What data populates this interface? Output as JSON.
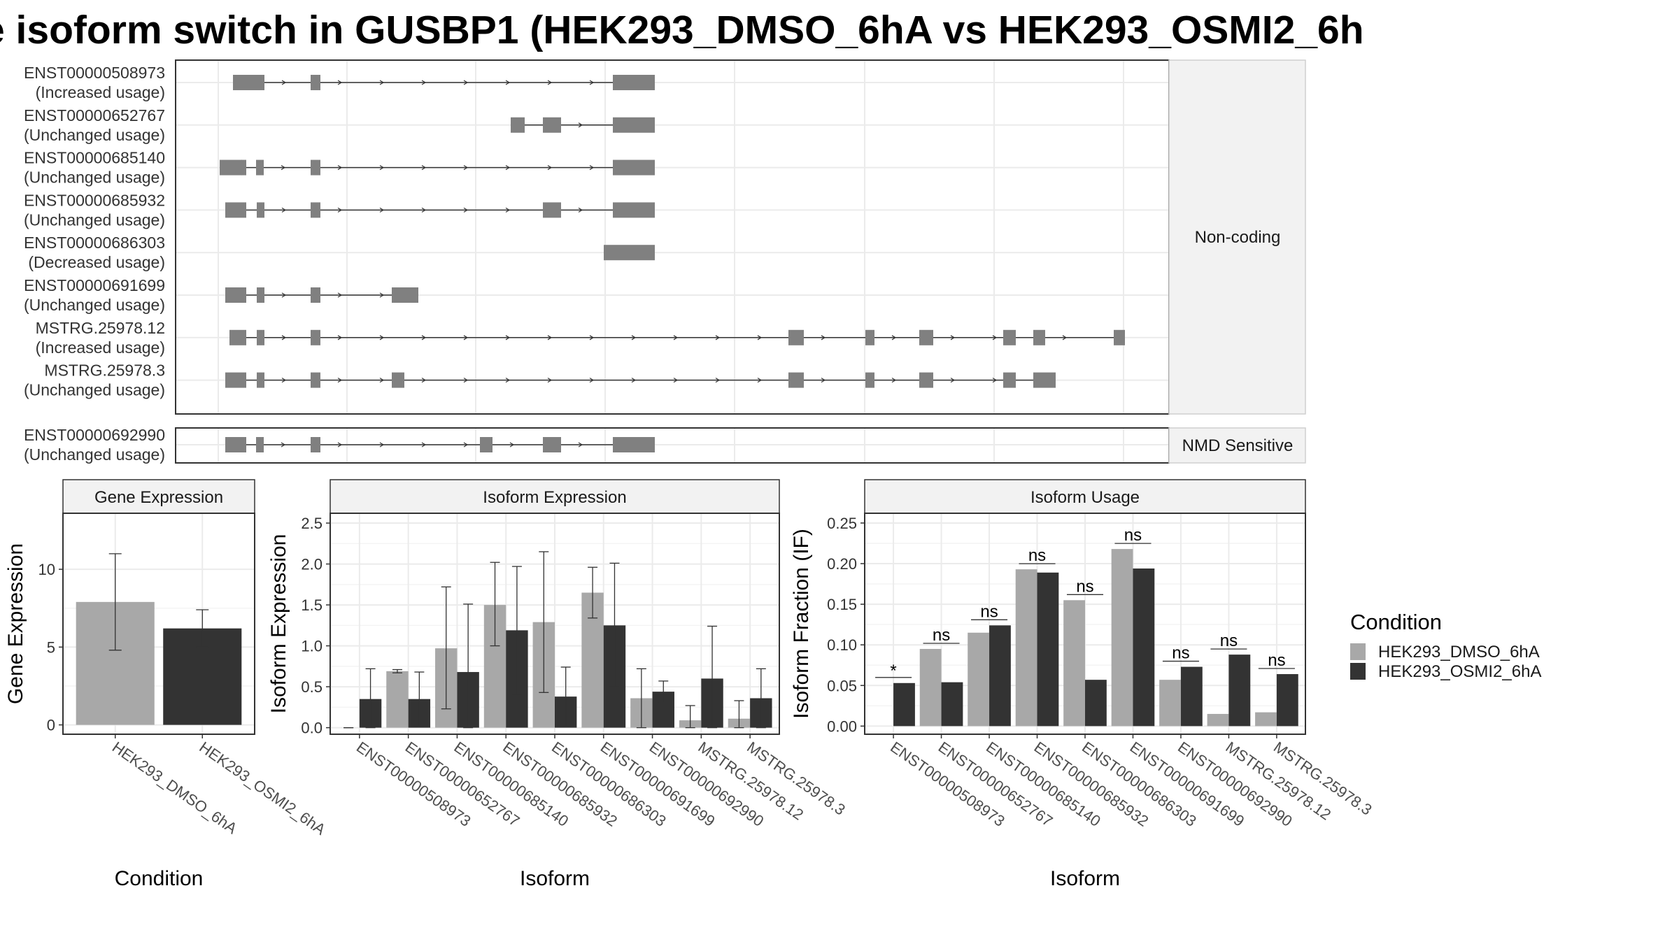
{
  "title": "e isoform switch in GUSBP1 (HEK293_DMSO_6hA vs HEK293_OSMI2_6h",
  "colors": {
    "dmso": "#a8a8a8",
    "osmi2": "#333333",
    "exon": "#808080",
    "grid": "#ebebeb",
    "strip": "#f2f2f2",
    "border": "#333333"
  },
  "chart_data": [
    {
      "type": "gene-structure",
      "panel": "Non-coding",
      "label": "Non-coding",
      "transcripts": [
        {
          "id": "ENST00000508973",
          "usage": "(Increased usage)"
        },
        {
          "id": "ENST00000652767",
          "usage": "(Unchanged usage)"
        },
        {
          "id": "ENST00000685140",
          "usage": "(Unchanged usage)"
        },
        {
          "id": "ENST00000685932",
          "usage": "(Unchanged usage)"
        },
        {
          "id": "ENST00000686303",
          "usage": "(Decreased usage)"
        },
        {
          "id": "ENST00000691699",
          "usage": "(Unchanged usage)"
        },
        {
          "id": "MSTRG.25978.12",
          "usage": "(Increased usage)"
        },
        {
          "id": "MSTRG.25978.3",
          "usage": "(Unchanged usage)"
        }
      ]
    },
    {
      "type": "gene-structure",
      "panel": "NMD Sensitive",
      "label": "NMD Sensitive",
      "transcripts": [
        {
          "id": "ENST00000692990",
          "usage": "(Unchanged usage)"
        }
      ]
    },
    {
      "type": "bar",
      "title": "Gene Expression",
      "xlabel": "Condition",
      "ylabel": "Gene Expression",
      "ylim": [
        -0.6,
        13.6
      ],
      "yticks": [
        0,
        5,
        10
      ],
      "categories": [
        "HEK293_DMSO_6hA",
        "HEK293_OSMI2_6hA"
      ],
      "values": [
        7.9,
        6.2
      ],
      "error_low": [
        4.8,
        5.0
      ],
      "error_high": [
        11.0,
        7.4
      ]
    },
    {
      "type": "bar",
      "title": "Isoform Expression",
      "xlabel": "Isoform",
      "ylabel": "Isoform Expression",
      "ylim": [
        -0.08,
        2.62
      ],
      "yticks": [
        0.0,
        0.5,
        1.0,
        1.5,
        2.0,
        2.5
      ],
      "categories": [
        "ENST00000508973",
        "ENST00000652767",
        "ENST00000685140",
        "ENST00000685932",
        "ENST00000686303",
        "ENST00000691699",
        "ENST00000692990",
        "MSTRG.25978.12",
        "MSTRG.25978.3"
      ],
      "series": [
        {
          "name": "HEK293_DMSO_6hA",
          "values": [
            0.0,
            0.69,
            0.97,
            1.5,
            1.29,
            1.65,
            0.36,
            0.09,
            0.11
          ],
          "error_low": [
            0.0,
            0.67,
            0.23,
            1.0,
            0.43,
            1.34,
            0.0,
            0.0,
            0.0
          ],
          "error_high": [
            0.0,
            0.71,
            1.72,
            2.02,
            2.15,
            1.96,
            0.72,
            0.27,
            0.33
          ]
        },
        {
          "name": "HEK293_OSMI2_6hA",
          "values": [
            0.35,
            0.35,
            0.68,
            1.19,
            0.38,
            1.25,
            0.44,
            0.6,
            0.36
          ],
          "error_low": [
            0.0,
            0.02,
            0.0,
            0.41,
            0.02,
            0.5,
            0.31,
            0.0,
            0.0
          ],
          "error_high": [
            0.72,
            0.68,
            1.51,
            1.97,
            0.74,
            2.01,
            0.57,
            1.24,
            0.72
          ]
        }
      ]
    },
    {
      "type": "bar",
      "title": "Isoform Usage",
      "xlabel": "Isoform",
      "ylabel": "Isoform Fraction (IF)",
      "ylim": [
        -0.01,
        0.262
      ],
      "yticks": [
        0.0,
        0.05,
        0.1,
        0.15,
        0.2,
        0.25
      ],
      "categories": [
        "ENST00000508973",
        "ENST00000652767",
        "ENST00000685140",
        "ENST00000685932",
        "ENST00000686303",
        "ENST00000691699",
        "ENST00000692990",
        "MSTRG.25978.12",
        "MSTRG.25978.3"
      ],
      "series": [
        {
          "name": "HEK293_DMSO_6hA",
          "values": [
            0.0,
            0.095,
            0.115,
            0.193,
            0.155,
            0.218,
            0.057,
            0.015,
            0.017
          ]
        },
        {
          "name": "HEK293_OSMI2_6hA",
          "values": [
            0.053,
            0.054,
            0.124,
            0.189,
            0.057,
            0.194,
            0.073,
            0.088,
            0.064
          ]
        }
      ],
      "significance": [
        "*",
        "ns",
        "ns",
        "ns",
        "ns",
        "ns",
        "ns",
        "ns",
        "ns"
      ]
    }
  ],
  "legend": {
    "title": "Condition",
    "items": [
      "HEK293_DMSO_6hA",
      "HEK293_OSMI2_6hA"
    ]
  }
}
